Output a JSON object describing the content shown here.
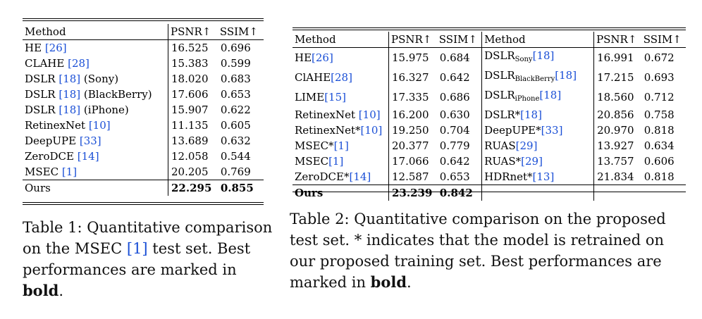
{
  "table1": {
    "headers": [
      "Method",
      "PSNR↑",
      "SSIM↑"
    ],
    "rows": [
      {
        "method": "HE",
        "cite": "[26]",
        "psnr": "16.525",
        "ssim": "0.696"
      },
      {
        "method": "CLAHE",
        "cite": "[28]",
        "psnr": "15.383",
        "ssim": "0.599"
      },
      {
        "method": "DSLR",
        "cite": "[18]",
        "suffix": "(Sony)",
        "psnr": "18.020",
        "ssim": "0.683"
      },
      {
        "method": "DSLR",
        "cite": "[18]",
        "suffix": "(BlackBerry)",
        "psnr": "17.606",
        "ssim": "0.653"
      },
      {
        "method": "DSLR",
        "cite": "[18]",
        "suffix": "(iPhone)",
        "psnr": "15.907",
        "ssim": "0.622"
      },
      {
        "method": "RetinexNet",
        "cite": "[10]",
        "psnr": "11.135",
        "ssim": "0.605"
      },
      {
        "method": "DeepUPE",
        "cite": "[33]",
        "psnr": "13.689",
        "ssim": "0.632"
      },
      {
        "method": "ZeroDCE",
        "cite": "[14]",
        "psnr": "12.058",
        "ssim": "0.544"
      },
      {
        "method": "MSEC",
        "cite": "[1]",
        "psnr": "20.205",
        "ssim": "0.769"
      }
    ],
    "ours": {
      "method": "Ours",
      "psnr": "22.295",
      "ssim": "0.855"
    },
    "caption_prefix": "Table 1: Quantitative comparison on the MSEC ",
    "caption_cite": "[1]",
    "caption_mid": " test set. Best performances are marked in ",
    "caption_bold": "bold",
    "caption_end": "."
  },
  "table2": {
    "headers": [
      "Method",
      "PSNR↑",
      "SSIM↑",
      "Method",
      "PSNR↑",
      "SSIM↑"
    ],
    "rows": [
      {
        "l_method": "HE",
        "l_cite": "[26]",
        "l_psnr": "15.975",
        "l_ssim": "0.684",
        "r_method": "DSLR",
        "r_sub": "Sony",
        "r_cite": "[18]",
        "r_psnr": "16.991",
        "r_ssim": "0.672"
      },
      {
        "l_method": "ClAHE",
        "l_cite": "[28]",
        "l_psnr": "16.327",
        "l_ssim": "0.642",
        "r_method": "DSLR",
        "r_sub": "BlackBerry",
        "r_cite": "[18]",
        "r_psnr": "17.215",
        "r_ssim": "0.693"
      },
      {
        "l_method": "LIME",
        "l_cite": "[15]",
        "l_psnr": "17.335",
        "l_ssim": "0.686",
        "r_method": "DSLR",
        "r_sub": "iPhone",
        "r_cite": "[18]",
        "r_psnr": "18.560",
        "r_ssim": "0.712"
      },
      {
        "l_method": "RetinexNet ",
        "l_cite": "[10]",
        "l_psnr": "16.200",
        "l_ssim": "0.630",
        "r_method": "DSLR*",
        "r_sub": "",
        "r_cite": "[18]",
        "r_psnr": "20.856",
        "r_ssim": "0.758"
      },
      {
        "l_method": "RetinexNet*",
        "l_cite": "[10]",
        "l_psnr": "19.250",
        "l_ssim": "0.704",
        "r_method": "DeepUPE*",
        "r_sub": "",
        "r_cite": "[33]",
        "r_psnr": "20.970",
        "r_ssim": "0.818"
      },
      {
        "l_method": "MSEC*",
        "l_cite": "[1]",
        "l_psnr": "20.377",
        "l_ssim": "0.779",
        "r_method": "RUAS",
        "r_sub": "",
        "r_cite": "[29]",
        "r_psnr": "13.927",
        "r_ssim": "0.634"
      },
      {
        "l_method": "MSEC",
        "l_cite": "[1]",
        "l_psnr": "17.066",
        "l_ssim": "0.642",
        "r_method": "RUAS*",
        "r_sub": "",
        "r_cite": "[29]",
        "r_psnr": "13.757",
        "r_ssim": "0.606"
      },
      {
        "l_method": "ZeroDCE*",
        "l_cite": "[14]",
        "l_psnr": "12.587",
        "l_ssim": "0.653",
        "r_method": "HDRnet*",
        "r_sub": "",
        "r_cite": "[13]",
        "r_psnr": "21.834",
        "r_ssim": "0.818"
      }
    ],
    "ours": {
      "method": "Ours",
      "psnr": "23.239",
      "ssim": "0.842"
    },
    "caption_text": "Table 2: Quantitative comparison on the proposed test set. * indicates that the model is retrained on our proposed training set. Best performances are marked in ",
    "caption_bold": "bold",
    "caption_end": "."
  }
}
